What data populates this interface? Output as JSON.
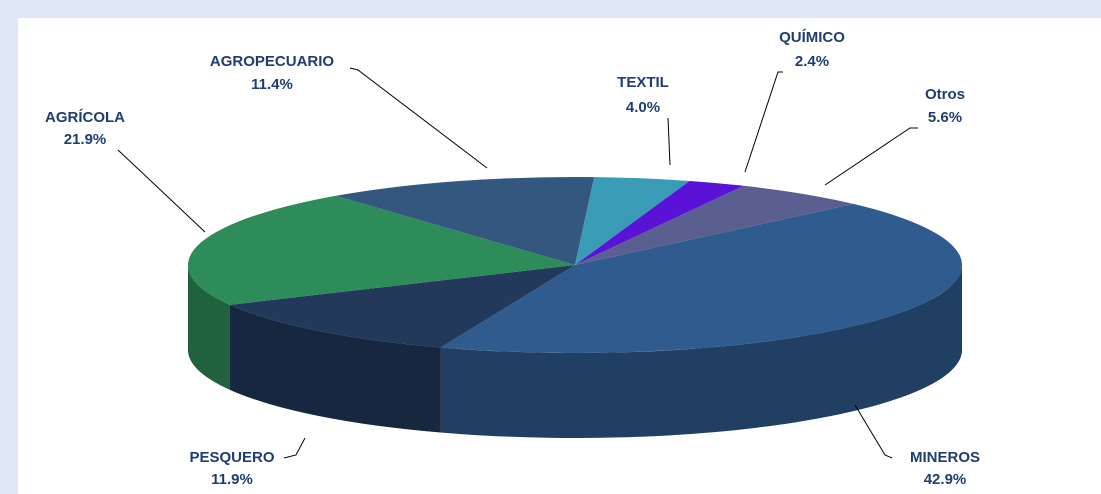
{
  "chart_data": {
    "type": "pie",
    "categories": [
      "MINEROS",
      "PESQUERO",
      "AGRÍCOLA",
      "AGROPECUARIO",
      "TEXTIL",
      "QUÍMICO",
      "Otros"
    ],
    "values": [
      42.9,
      11.9,
      21.9,
      11.4,
      4.0,
      2.4,
      5.6
    ],
    "value_labels": [
      "42.9%",
      "11.9%",
      "21.9%",
      "11.4%",
      "4.0%",
      "2.4%",
      "5.6%"
    ],
    "colors": [
      "#2f5b8e",
      "#22395c",
      "#2e8b5a",
      "#34577f",
      "#3a9bb6",
      "#5a12d6",
      "#5b5f90"
    ]
  }
}
